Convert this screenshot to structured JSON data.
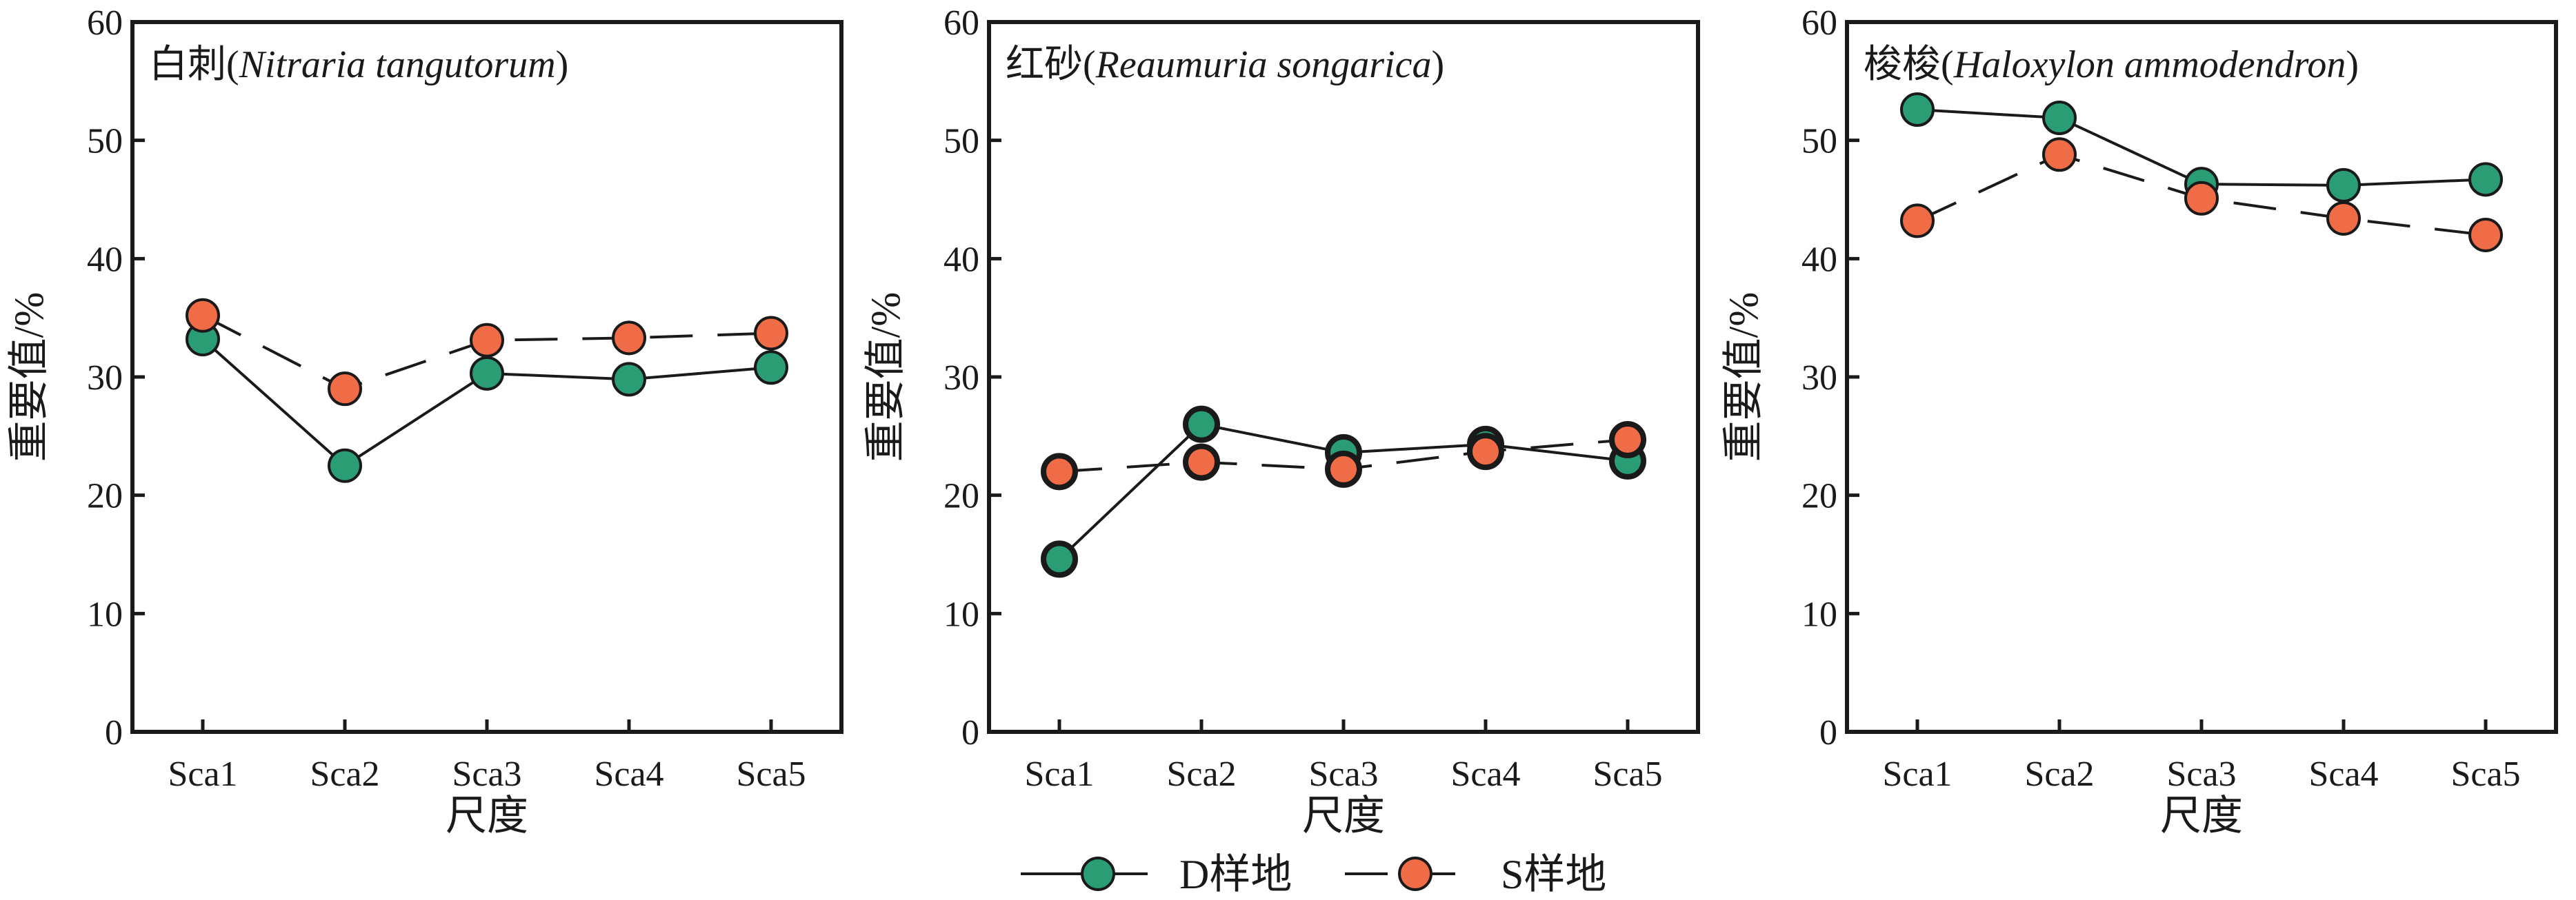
{
  "chart_data": [
    {
      "type": "line",
      "title": "白刺(Nitraria tangutorum)",
      "title_cn": "白刺(",
      "title_latin": "Nitraria tangutorum",
      "title_close": ")",
      "xlabel": "尺度",
      "ylabel": "重要值/%",
      "categories": [
        "Sca1",
        "Sca2",
        "Sca3",
        "Sca4",
        "Sca5"
      ],
      "ylim": [
        0,
        60
      ],
      "yticks": [
        "0",
        "10",
        "20",
        "30",
        "40",
        "50",
        "60"
      ],
      "series": [
        {
          "name": "D样地",
          "values": [
            33.2,
            22.5,
            30.3,
            29.8,
            30.8
          ]
        },
        {
          "name": "S样地",
          "values": [
            35.2,
            29.0,
            33.1,
            33.3,
            33.7
          ]
        }
      ]
    },
    {
      "type": "line",
      "title": "红砂(Reaumuria songarica)",
      "title_cn": "红砂(",
      "title_latin": "Reaumuria songarica",
      "title_close": ")",
      "xlabel": "尺度",
      "ylabel": "重要值/%",
      "categories": [
        "Sca1",
        "Sca2",
        "Sca3",
        "Sca4",
        "Sca5"
      ],
      "ylim": [
        0,
        60
      ],
      "yticks": [
        "0",
        "10",
        "20",
        "30",
        "40",
        "50",
        "60"
      ],
      "series": [
        {
          "name": "D样地",
          "values": [
            14.6,
            26.0,
            23.6,
            24.3,
            22.9
          ]
        },
        {
          "name": "S样地",
          "values": [
            22.0,
            22.8,
            22.2,
            23.7,
            24.7
          ]
        }
      ]
    },
    {
      "type": "line",
      "title": "梭梭(Haloxylon ammodendron)",
      "title_cn": "梭梭(",
      "title_latin": "Haloxylon ammodendron",
      "title_close": ")",
      "xlabel": "尺度",
      "ylabel": "重要值/%",
      "categories": [
        "Sca1",
        "Sca2",
        "Sca3",
        "Sca4",
        "Sca5"
      ],
      "ylim": [
        0,
        60
      ],
      "yticks": [
        "0",
        "10",
        "20",
        "30",
        "40",
        "50",
        "60"
      ],
      "series": [
        {
          "name": "D样地",
          "values": [
            52.6,
            51.9,
            46.3,
            46.2,
            46.7
          ]
        },
        {
          "name": "S样地",
          "values": [
            43.2,
            48.8,
            45.1,
            43.4,
            42.0
          ]
        }
      ]
    }
  ],
  "legend": {
    "placement": "bottom-center",
    "items": [
      {
        "label": "D样地",
        "color": "#2a9d74",
        "line": "solid"
      },
      {
        "label": "S样地",
        "color": "#ef6c47",
        "line": "dashed"
      }
    ]
  },
  "colors": {
    "D": "#2a9d74",
    "S": "#ef6c47",
    "axis": "#1a1a1a"
  }
}
